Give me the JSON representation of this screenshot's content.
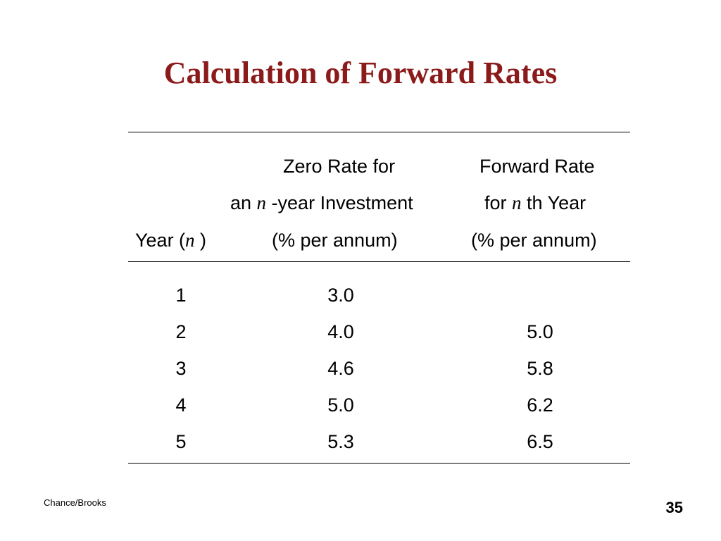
{
  "slide": {
    "title": "Calculation of Forward Rates",
    "footer": "Chance/Brooks",
    "page_number": "35",
    "title_color": "#8b1a1a"
  },
  "table": {
    "headers": {
      "year": {
        "pre": "Year (",
        "var": "n",
        "post": " )"
      },
      "zero_rate": {
        "line1": "Zero Rate for",
        "line2_pre": "an ",
        "line2_var": "n",
        "line2_post": " -year Investment",
        "line3": "(% per annum)"
      },
      "forward_rate": {
        "line1": "Forward Rate",
        "line2_pre": "for ",
        "line2_var": "n",
        "line2_post": " th Year",
        "line3": "(% per annum)"
      }
    },
    "rows": [
      {
        "year": "1",
        "zero_rate": "3.0",
        "forward_rate": ""
      },
      {
        "year": "2",
        "zero_rate": "4.0",
        "forward_rate": "5.0"
      },
      {
        "year": "3",
        "zero_rate": "4.6",
        "forward_rate": "5.8"
      },
      {
        "year": "4",
        "zero_rate": "5.0",
        "forward_rate": "6.2"
      },
      {
        "year": "5",
        "zero_rate": "5.3",
        "forward_rate": "6.5"
      }
    ]
  }
}
